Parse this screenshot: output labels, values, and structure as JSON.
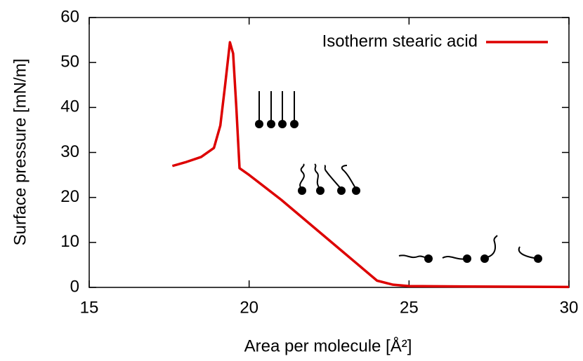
{
  "chart_data": {
    "type": "line",
    "x_label": "Area per molecule [Å²]",
    "y_label": "Surface pressure [mN/m]",
    "xlim": [
      15,
      30
    ],
    "xticks": [
      15,
      20,
      25,
      30
    ],
    "ylim": [
      0,
      60
    ],
    "yticks": [
      0,
      10,
      20,
      30,
      40,
      50,
      60
    ],
    "legend": "top-right",
    "x": [
      17.6,
      18.0,
      18.5,
      18.9,
      19.1,
      19.25,
      19.4,
      19.5,
      19.6,
      19.7,
      20.0,
      21.0,
      22.0,
      23.0,
      23.5,
      24.0,
      24.5,
      25.0,
      27.0,
      30.0
    ],
    "series": [
      {
        "name": "Isotherm stearic acid",
        "color": "#dd0000",
        "values": [
          27,
          27.8,
          29,
          31,
          36,
          45,
          54.5,
          52,
          40,
          26.5,
          25,
          19.5,
          13.5,
          7.5,
          4.5,
          1.5,
          0.6,
          0.3,
          0.2,
          0.1
        ]
      }
    ]
  }
}
